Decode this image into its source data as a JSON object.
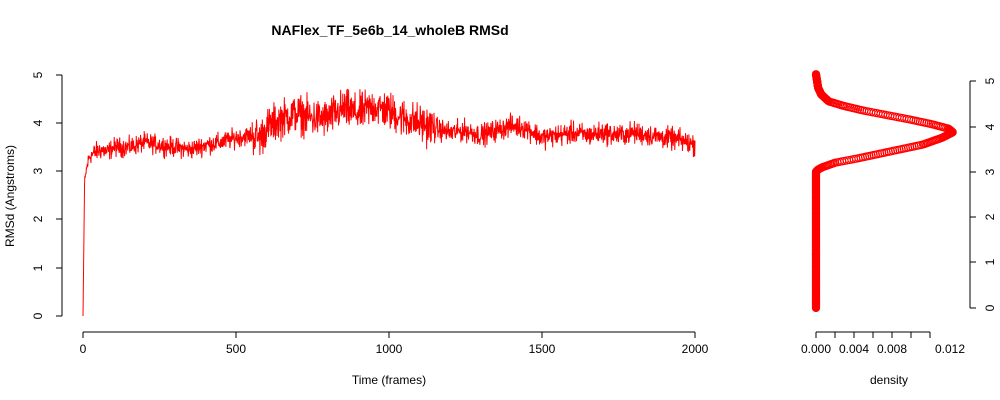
{
  "chart_data": [
    {
      "type": "line",
      "title": "NAFlex_TF_5e6b_14_wholeB RMSd",
      "xlabel": "Time (frames)",
      "ylabel": "RMSd (Angstroms)",
      "xlim": [
        0,
        2000
      ],
      "ylim": [
        0,
        5
      ],
      "xticks": [
        0,
        500,
        1000,
        1500,
        2000
      ],
      "yticks": [
        0,
        1,
        2,
        3,
        4,
        5
      ],
      "grid": false,
      "legend": "none",
      "color": "#ff0000",
      "series": [
        {
          "x": [
            0,
            5,
            10,
            20,
            40,
            60,
            80,
            100,
            150,
            200,
            250,
            300,
            350,
            400,
            450,
            500,
            550,
            580,
            600,
            650,
            700,
            750,
            800,
            850,
            900,
            950,
            1000,
            1050,
            1100,
            1150,
            1200,
            1250,
            1300,
            1350,
            1400,
            1450,
            1500,
            1550,
            1600,
            1650,
            1700,
            1750,
            1800,
            1850,
            1900,
            1950,
            2000
          ],
          "y": [
            0.0,
            2.7,
            3.0,
            3.3,
            3.4,
            3.45,
            3.4,
            3.5,
            3.5,
            3.6,
            3.55,
            3.5,
            3.45,
            3.55,
            3.6,
            3.7,
            3.75,
            3.7,
            3.9,
            4.1,
            4.2,
            4.1,
            4.1,
            4.3,
            4.2,
            4.35,
            4.25,
            4.1,
            4.0,
            3.9,
            3.8,
            3.85,
            3.75,
            3.85,
            3.95,
            3.9,
            3.7,
            3.75,
            3.8,
            3.75,
            3.8,
            3.75,
            3.8,
            3.75,
            3.7,
            3.65,
            3.55
          ]
        }
      ]
    },
    {
      "type": "scatter",
      "xlabel": "density",
      "ylabel": "",
      "xlim": [
        0,
        0.013
      ],
      "ylim": [
        0,
        5
      ],
      "xticks": [
        "0.000",
        "0.004",
        "0.008",
        "0.012"
      ],
      "yticks": [
        0,
        1,
        2,
        3,
        4,
        5
      ],
      "grid": false,
      "legend": "none",
      "color": "#ff0000",
      "series": [
        {
          "density": [
            0.0,
            0.0,
            0.0,
            0.0,
            0.0,
            0.0,
            0.0,
            0.0,
            0.0,
            0.0002,
            0.0006,
            0.0018,
            0.004,
            0.007,
            0.01,
            0.0118,
            0.0128,
            0.0124,
            0.0108,
            0.0088,
            0.0066,
            0.0044,
            0.0026,
            0.0012,
            0.0005,
            0.0002,
            0.0001,
            0.0
          ],
          "y": [
            0.0,
            0.5,
            1.0,
            1.5,
            2.0,
            2.4,
            2.7,
            2.9,
            3.0,
            3.05,
            3.1,
            3.2,
            3.3,
            3.45,
            3.6,
            3.75,
            3.87,
            3.95,
            4.05,
            4.15,
            4.25,
            4.35,
            4.45,
            4.55,
            4.7,
            4.85,
            5.0,
            5.15
          ]
        }
      ]
    }
  ],
  "rmsd_panel": {
    "title": "NAFlex_TF_5e6b_14_wholeB RMSd",
    "xlabel": "Time (frames)",
    "ylabel": "RMSd (Angstroms)",
    "xtick_labels": [
      "0",
      "500",
      "1000",
      "1500",
      "2000"
    ],
    "ytick_labels": [
      "0",
      "1",
      "2",
      "3",
      "4",
      "5"
    ]
  },
  "density_panel": {
    "xlabel": "density",
    "xtick_labels": [
      "0.000",
      "0.004",
      "0.008",
      "0.012"
    ],
    "ytick_labels": [
      "0",
      "1",
      "2",
      "3",
      "4",
      "5"
    ]
  }
}
